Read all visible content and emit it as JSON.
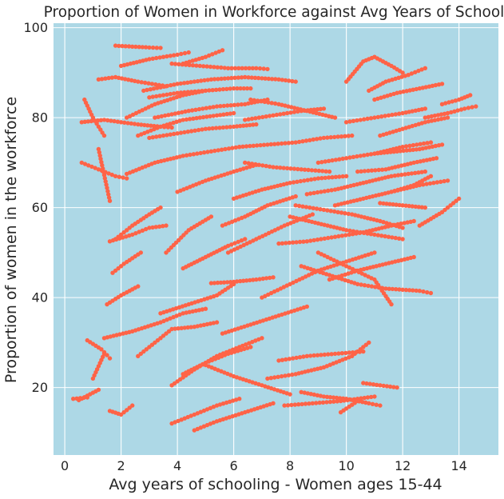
{
  "chart_data": {
    "type": "scatter",
    "title": "Proportion of Women in Workforce against Avg Years of School",
    "xlabel": "Avg years of schooling - Women ages 15-44",
    "ylabel": "Proportion of women in the workforce",
    "xlim": [
      -0.4,
      15.4
    ],
    "ylim": [
      5,
      101
    ],
    "xticks": [
      0,
      2,
      4,
      6,
      8,
      10,
      12,
      14
    ],
    "yticks": [
      20,
      40,
      60,
      80,
      100
    ],
    "grid": true,
    "legend": "none",
    "colors": {
      "plot_background": "#add8e6",
      "points": "#ff6347",
      "grid": "#ffffff"
    },
    "trajectories": [
      {
        "x": [
          0.3,
          0.8
        ],
        "y": [
          17.5,
          17.8
        ]
      },
      {
        "x": [
          0.5,
          1.2
        ],
        "y": [
          17.2,
          19.5
        ]
      },
      {
        "x": [
          0.8,
          1.3,
          1.5,
          1.6
        ],
        "y": [
          30.5,
          28.5,
          27.2,
          26.5
        ]
      },
      {
        "x": [
          1.0,
          1.4
        ],
        "y": [
          22.0,
          27.5
        ]
      },
      {
        "x": [
          1.6,
          2.0,
          2.4
        ],
        "y": [
          14.8,
          14.0,
          16.0
        ]
      },
      {
        "x": [
          0.6,
          1.2,
          1.8,
          2.2
        ],
        "y": [
          70.0,
          68.5,
          67.0,
          66.5
        ]
      },
      {
        "x": [
          0.7,
          1.0,
          1.4
        ],
        "y": [
          84.0,
          80.0,
          76.0
        ]
      },
      {
        "x": [
          1.2,
          1.6
        ],
        "y": [
          73.0,
          61.5
        ]
      },
      {
        "x": [
          0.6,
          1.4,
          2.0,
          2.6,
          3.4,
          3.8
        ],
        "y": [
          79.0,
          79.5,
          79.0,
          78.5,
          78.0,
          77.8
        ]
      },
      {
        "x": [
          1.6,
          2.4,
          3.0,
          3.6
        ],
        "y": [
          52.5,
          54.0,
          55.5,
          56.0
        ]
      },
      {
        "x": [
          1.8,
          2.4,
          3.0,
          3.4
        ],
        "y": [
          53.0,
          56.0,
          58.5,
          60.0
        ]
      },
      {
        "x": [
          1.5,
          2.0,
          2.6
        ],
        "y": [
          38.5,
          40.5,
          42.5
        ]
      },
      {
        "x": [
          1.4,
          2.4,
          3.4,
          4.2,
          5.0
        ],
        "y": [
          31.0,
          32.5,
          34.5,
          36.5,
          37.5
        ]
      },
      {
        "x": [
          1.7,
          2.1,
          2.7
        ],
        "y": [
          45.5,
          47.5,
          50.0
        ]
      },
      {
        "x": [
          2.6,
          3.2,
          3.8,
          4.6,
          5.4
        ],
        "y": [
          27.0,
          30.0,
          33.0,
          33.5,
          34.5
        ]
      },
      {
        "x": [
          1.8,
          2.4,
          3.0,
          3.4
        ],
        "y": [
          96.0,
          95.8,
          95.6,
          95.5
        ]
      },
      {
        "x": [
          2.0,
          3.0,
          4.0,
          4.4
        ],
        "y": [
          91.5,
          93.0,
          94.0,
          94.5
        ]
      },
      {
        "x": [
          1.2,
          1.8,
          2.6,
          3.6
        ],
        "y": [
          88.5,
          89.0,
          88.0,
          87.0
        ]
      },
      {
        "x": [
          2.2,
          3.2,
          4.2,
          5.0
        ],
        "y": [
          80.0,
          83.0,
          85.0,
          86.0
        ]
      },
      {
        "x": [
          2.6,
          3.4,
          4.2,
          5.4,
          6.0
        ],
        "y": [
          76.0,
          78.0,
          79.5,
          80.5,
          81.0
        ]
      },
      {
        "x": [
          4.2,
          5.0,
          5.6
        ],
        "y": [
          92.0,
          93.5,
          95.0
        ]
      },
      {
        "x": [
          3.8,
          4.8,
          5.8,
          6.8,
          7.2
        ],
        "y": [
          92.0,
          91.5,
          91.0,
          91.0,
          90.8
        ]
      },
      {
        "x": [
          2.8,
          4.0,
          5.2,
          6.4,
          7.6,
          8.2
        ],
        "y": [
          86.0,
          87.5,
          88.5,
          89.0,
          88.5,
          88.0
        ]
      },
      {
        "x": [
          3.0,
          4.0,
          5.0,
          6.0,
          6.6
        ],
        "y": [
          84.5,
          85.5,
          86.0,
          86.5,
          86.5
        ]
      },
      {
        "x": [
          3.2,
          4.4,
          5.4,
          6.4,
          7.2
        ],
        "y": [
          80.0,
          81.5,
          82.5,
          83.0,
          84.0
        ]
      },
      {
        "x": [
          3.0,
          4.0,
          5.0,
          6.0,
          6.8
        ],
        "y": [
          75.5,
          76.5,
          77.5,
          78.0,
          78.5
        ]
      },
      {
        "x": [
          2.2,
          3.2,
          4.2,
          5.2,
          6.2
        ],
        "y": [
          67.5,
          70.0,
          71.5,
          72.5,
          73.5
        ]
      },
      {
        "x": [
          4.0,
          5.0,
          6.0,
          6.8
        ],
        "y": [
          63.5,
          66.0,
          68.0,
          69.5
        ]
      },
      {
        "x": [
          3.6,
          4.4,
          5.2
        ],
        "y": [
          50.0,
          55.0,
          58.0
        ]
      },
      {
        "x": [
          4.2,
          5.0,
          5.8,
          6.4
        ],
        "y": [
          46.5,
          49.0,
          51.5,
          53.0
        ]
      },
      {
        "x": [
          3.4,
          4.4,
          5.4,
          6.0
        ],
        "y": [
          36.5,
          38.5,
          40.5,
          43.0
        ]
      },
      {
        "x": [
          3.8,
          4.6,
          5.4,
          6.2,
          7.0
        ],
        "y": [
          20.5,
          24.0,
          27.0,
          29.0,
          31.0
        ]
      },
      {
        "x": [
          4.2,
          5.0,
          5.8,
          6.6
        ],
        "y": [
          23.0,
          25.5,
          27.5,
          29.0
        ]
      },
      {
        "x": [
          3.8,
          4.6,
          5.4,
          6.2
        ],
        "y": [
          12.0,
          14.0,
          16.0,
          17.5
        ]
      },
      {
        "x": [
          4.6,
          5.4,
          6.4,
          7.4
        ],
        "y": [
          10.5,
          12.5,
          14.5,
          16.5
        ]
      },
      {
        "x": [
          5.0,
          6.0,
          7.0,
          8.0
        ],
        "y": [
          25.0,
          22.5,
          20.5,
          18.5
        ]
      },
      {
        "x": [
          5.6,
          6.6,
          7.6,
          8.6
        ],
        "y": [
          32.0,
          34.0,
          36.0,
          38.0
        ]
      },
      {
        "x": [
          5.2,
          6.0,
          6.8,
          7.4
        ],
        "y": [
          43.2,
          43.5,
          44.0,
          44.5
        ]
      },
      {
        "x": [
          5.6,
          6.4,
          7.2,
          8.2
        ],
        "y": [
          56.0,
          58.0,
          60.5,
          62.5
        ]
      },
      {
        "x": [
          5.8,
          6.8,
          7.8,
          8.8
        ],
        "y": [
          50.0,
          53.0,
          56.0,
          58.5
        ]
      },
      {
        "x": [
          6.0,
          7.0,
          8.0,
          9.0,
          10.0
        ],
        "y": [
          62.0,
          64.0,
          65.5,
          66.5,
          67.0
        ]
      },
      {
        "x": [
          6.4,
          7.4,
          8.4,
          9.4
        ],
        "y": [
          70.0,
          69.0,
          68.5,
          68.0
        ]
      },
      {
        "x": [
          6.2,
          7.2,
          8.2,
          9.2,
          10.2
        ],
        "y": [
          73.5,
          74.0,
          74.5,
          75.5,
          76.0
        ]
      },
      {
        "x": [
          6.4,
          7.4,
          8.4,
          9.2
        ],
        "y": [
          79.5,
          80.5,
          81.5,
          82.0
        ]
      },
      {
        "x": [
          6.6,
          7.6,
          8.6,
          9.6
        ],
        "y": [
          84.0,
          83.0,
          81.5,
          80.0
        ]
      },
      {
        "x": [
          7.0,
          8.0,
          9.0,
          10.0,
          11.0
        ],
        "y": [
          40.0,
          43.0,
          46.0,
          48.0,
          50.0
        ]
      },
      {
        "x": [
          7.6,
          8.6,
          9.6,
          10.6
        ],
        "y": [
          26.0,
          27.0,
          27.5,
          28.0
        ]
      },
      {
        "x": [
          7.2,
          8.2,
          9.2,
          10.2,
          10.8
        ],
        "y": [
          22.0,
          23.0,
          24.5,
          27.0,
          30.0
        ]
      },
      {
        "x": [
          7.8,
          8.8,
          9.8,
          10.4,
          11.0
        ],
        "y": [
          16.0,
          16.5,
          17.0,
          17.5,
          18.0
        ]
      },
      {
        "x": [
          8.4,
          9.2,
          10.0,
          10.8,
          11.2
        ],
        "y": [
          19.0,
          18.0,
          17.5,
          16.5,
          16.0
        ]
      },
      {
        "x": [
          10.6,
          11.2,
          11.8
        ],
        "y": [
          21.0,
          20.5,
          20.0
        ]
      },
      {
        "x": [
          9.8,
          10.4
        ],
        "y": [
          14.5,
          17.0
        ]
      },
      {
        "x": [
          7.6,
          8.6,
          9.6,
          10.6,
          11.6,
          12.4
        ],
        "y": [
          52.0,
          52.5,
          53.5,
          54.5,
          56.0,
          57.0
        ]
      },
      {
        "x": [
          8.0,
          9.0,
          10.0,
          11.0,
          12.0
        ],
        "y": [
          58.0,
          56.5,
          55.0,
          54.0,
          53.0
        ]
      },
      {
        "x": [
          8.2,
          9.2,
          10.2,
          11.2,
          12.0
        ],
        "y": [
          60.5,
          59.5,
          58.5,
          57.0,
          55.5
        ]
      },
      {
        "x": [
          8.4,
          9.4,
          10.4,
          11.4,
          12.6,
          13.0
        ],
        "y": [
          47.0,
          45.0,
          43.0,
          42.0,
          41.5,
          41.0
        ]
      },
      {
        "x": [
          9.0,
          10.0,
          11.0,
          11.6
        ],
        "y": [
          50.0,
          47.0,
          44.0,
          38.5
        ]
      },
      {
        "x": [
          9.4,
          10.4,
          11.4,
          12.4
        ],
        "y": [
          44.0,
          46.0,
          47.5,
          49.0
        ]
      },
      {
        "x": [
          8.6,
          9.6,
          10.6,
          11.6,
          12.8
        ],
        "y": [
          63.0,
          64.0,
          65.5,
          67.0,
          68.0
        ]
      },
      {
        "x": [
          9.0,
          10.0,
          11.0,
          12.0,
          13.0
        ],
        "y": [
          70.0,
          71.0,
          72.0,
          73.5,
          74.5
        ]
      },
      {
        "x": [
          9.6,
          10.6,
          11.6,
          12.6,
          13.6
        ],
        "y": [
          60.5,
          62.0,
          63.5,
          65.0,
          66.0
        ]
      },
      {
        "x": [
          10.0,
          11.0,
          12.0,
          12.8
        ],
        "y": [
          79.0,
          80.0,
          81.0,
          82.0
        ]
      },
      {
        "x": [
          10.0,
          10.6,
          11.0,
          11.6,
          12.0
        ],
        "y": [
          88.0,
          92.5,
          93.5,
          91.5,
          90.0
        ]
      },
      {
        "x": [
          10.8,
          11.4,
          12.2,
          12.8
        ],
        "y": [
          86.0,
          88.0,
          89.5,
          91.0
        ]
      },
      {
        "x": [
          11.0,
          11.8,
          12.6,
          13.4
        ],
        "y": [
          84.0,
          85.5,
          86.5,
          87.5
        ]
      },
      {
        "x": [
          11.2,
          12.0,
          12.8,
          13.6
        ],
        "y": [
          76.0,
          77.5,
          79.0,
          80.0
        ]
      },
      {
        "x": [
          11.0,
          11.8,
          12.6,
          13.4
        ],
        "y": [
          72.0,
          72.5,
          73.0,
          74.0
        ]
      },
      {
        "x": [
          10.4,
          11.4,
          12.4,
          13.2
        ],
        "y": [
          68.0,
          68.5,
          70.0,
          71.0
        ]
      },
      {
        "x": [
          12.8,
          13.6,
          14.2,
          14.6
        ],
        "y": [
          80.0,
          81.0,
          82.0,
          82.5
        ]
      },
      {
        "x": [
          13.4,
          14.0,
          14.4
        ],
        "y": [
          83.0,
          84.0,
          85.0
        ]
      },
      {
        "x": [
          12.6,
          13.4,
          14.0
        ],
        "y": [
          56.0,
          59.0,
          62.0
        ]
      },
      {
        "x": [
          11.2,
          12.0,
          12.8
        ],
        "y": [
          61.0,
          60.5,
          60.0
        ]
      },
      {
        "x": [
          11.6,
          12.4,
          13.0
        ],
        "y": [
          63.5,
          65.0,
          67.0
        ]
      }
    ]
  }
}
